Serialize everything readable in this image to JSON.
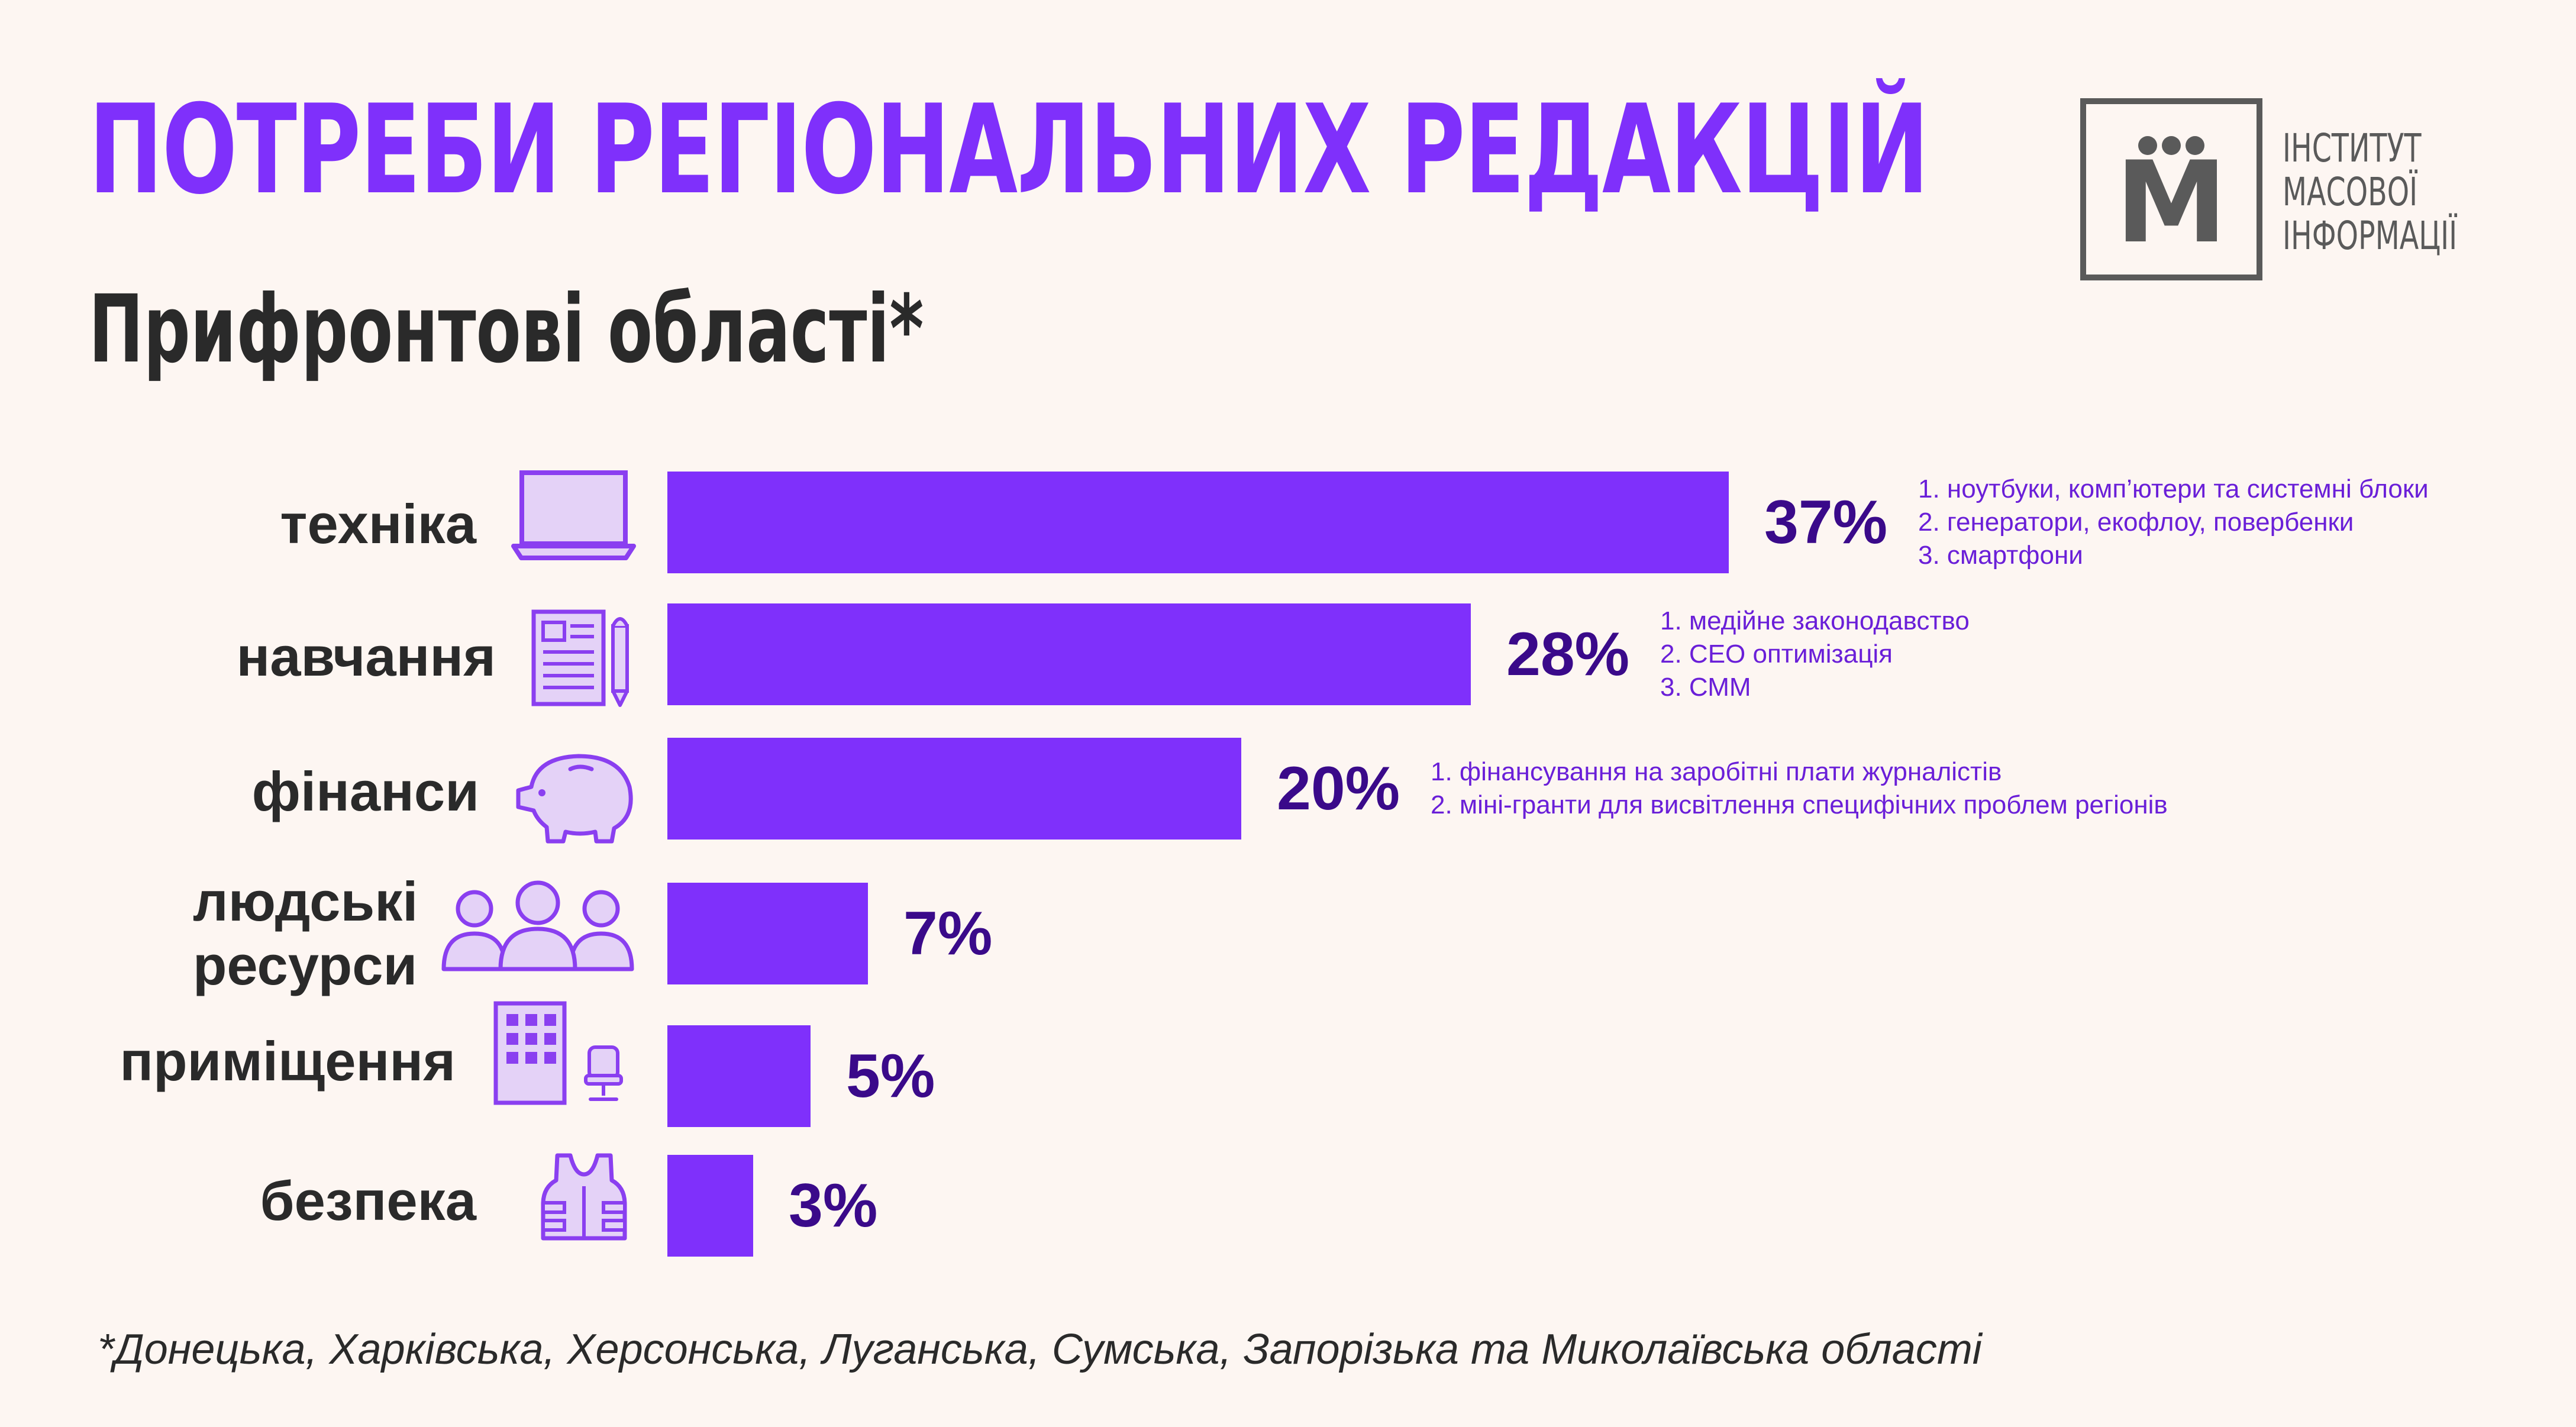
{
  "header": {
    "title": "ПОТРЕБИ РЕГІОНАЛЬНИХ РЕДАКЦІЙ",
    "subtitle": "Прифронтові області*"
  },
  "logo": {
    "letter": "М",
    "lines": [
      "ІНСТИТУТ",
      "МАСОВОЇ",
      "ІНФОРМАЦІЇ"
    ]
  },
  "chart_data": {
    "type": "bar",
    "orientation": "horizontal",
    "categories": [
      "техніка",
      "навчання",
      "фінанси",
      "людські ресурси",
      "приміщення",
      "безпека"
    ],
    "values": [
      37,
      28,
      20,
      7,
      5,
      3
    ],
    "value_labels": [
      "37%",
      "28%",
      "20%",
      "7%",
      "5%",
      "3%"
    ],
    "unit": "%",
    "xlim": [
      0,
      37
    ],
    "grid": false,
    "legend": "none",
    "bar_color": "#7f30fb",
    "annotations": [
      [
        "1. ноутбуки, комп’ютери та системні блоки",
        "2. генератори, екофлоу, повербенки",
        "3. смартфони"
      ],
      [
        "1. медійне законодавство",
        "2. СЕО оптимізація",
        "3. СММ"
      ],
      [
        "1. фінансування на заробітні плати журналістів",
        "2. міні-гранти для висвітлення специфічних проблем регіонів"
      ],
      [],
      [],
      []
    ],
    "icons": [
      "laptop-icon",
      "document-pen-icon",
      "piggy-bank-icon",
      "people-icon",
      "office-building-icon",
      "bulletproof-vest-icon"
    ]
  },
  "footnote": "*Донецька, Харківська, Херсонська, Луганська, Сумська, Запорізька та Миколаївська області",
  "colors": {
    "accent": "#7f30fb",
    "value_text": "#3a0a8a",
    "icon_stroke": "#8a3ff0",
    "icon_fill": "#e4d2f7",
    "background": "#fdf6f2"
  }
}
